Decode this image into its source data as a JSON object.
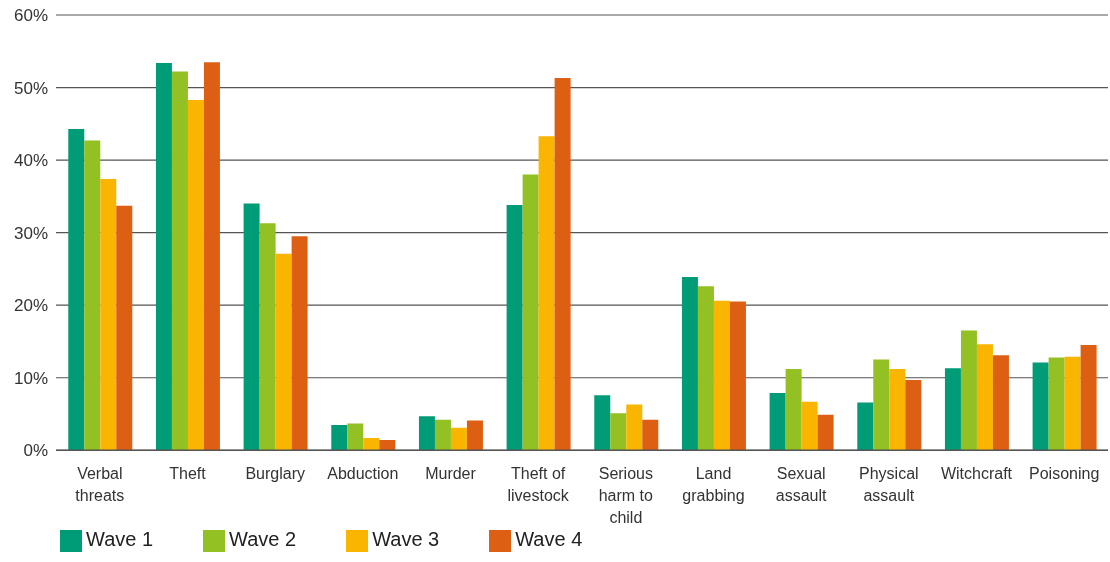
{
  "chart_data": {
    "type": "bar",
    "categories": [
      "Verbal threats",
      "Theft",
      "Burglary",
      "Abduction",
      "Murder",
      "Theft of livestock",
      "Serious harm to child",
      "Land grabbing",
      "Sexual assault",
      "Physical assault",
      "Witchcraft",
      "Poisoning"
    ],
    "series": [
      {
        "name": "Wave 1",
        "color": "#009b77",
        "values": [
          44.3,
          53.4,
          34,
          3.5,
          4.7,
          33.8,
          7.6,
          23.9,
          7.9,
          6.6,
          11.3,
          12.1
        ]
      },
      {
        "name": "Wave 2",
        "color": "#93c022",
        "values": [
          42.7,
          52.2,
          31.3,
          3.7,
          4.2,
          38,
          5.1,
          22.6,
          11.2,
          12.5,
          16.5,
          12.8
        ]
      },
      {
        "name": "Wave 3",
        "color": "#fab500",
        "values": [
          37.4,
          48.3,
          27.1,
          1.7,
          3.1,
          43.3,
          6.3,
          20.6,
          6.7,
          11.2,
          14.6,
          12.9
        ]
      },
      {
        "name": "Wave 4",
        "color": "#dc5f13",
        "values": [
          33.7,
          53.5,
          29.5,
          1.4,
          4.1,
          51.3,
          4.2,
          20.5,
          4.9,
          9.7,
          13.1,
          14.5
        ]
      }
    ],
    "ylim": [
      0,
      60
    ],
    "yticks": [
      {
        "value": 0,
        "label": "0%"
      },
      {
        "value": 10,
        "label": "10%"
      },
      {
        "value": 20,
        "label": "20%"
      },
      {
        "value": 30,
        "label": "30%"
      },
      {
        "value": 40,
        "label": "40%"
      },
      {
        "value": 50,
        "label": "50%"
      },
      {
        "value": 60,
        "label": "60%"
      }
    ],
    "grid": "y",
    "legend": "bottom left"
  }
}
